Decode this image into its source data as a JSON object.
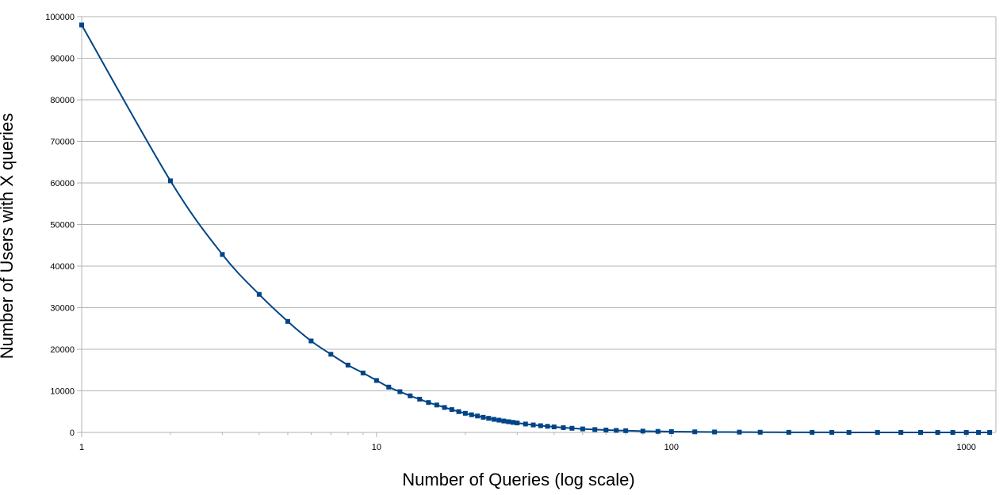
{
  "chart_data": {
    "type": "line",
    "title": "",
    "xlabel": "Number of Queries (log scale)",
    "ylabel": "Number of Users with X queries",
    "x_scale": "log",
    "xlim": [
      1,
      1260
    ],
    "ylim": [
      0,
      100000
    ],
    "x_ticks": [
      "1",
      "10",
      "100",
      "1000"
    ],
    "y_ticks": [
      "0",
      "10000",
      "20000",
      "30000",
      "40000",
      "50000",
      "60000",
      "70000",
      "80000",
      "90000",
      "100000"
    ],
    "grid": "horizontal",
    "legend": "none",
    "series": [
      {
        "color": "#004586",
        "marker": "square",
        "x": [
          1,
          2,
          3,
          4,
          5,
          6,
          7,
          8,
          9,
          10,
          11,
          12,
          13,
          14,
          15,
          16,
          17,
          18,
          19,
          20,
          21,
          22,
          23,
          24,
          25,
          26,
          27,
          28,
          29,
          30,
          32,
          34,
          36,
          38,
          40,
          43,
          46,
          50,
          55,
          60,
          65,
          70,
          80,
          90,
          100,
          120,
          140,
          170,
          200,
          250,
          300,
          350,
          400,
          500,
          600,
          700,
          800,
          900,
          1000,
          1100,
          1200
        ],
        "y": [
          98000,
          60500,
          42800,
          33200,
          26700,
          22000,
          18800,
          16200,
          14300,
          12500,
          10900,
          9800,
          8800,
          8000,
          7200,
          6600,
          6000,
          5500,
          5000,
          4600,
          4250,
          3950,
          3650,
          3400,
          3150,
          2950,
          2750,
          2580,
          2420,
          2280,
          2020,
          1800,
          1620,
          1470,
          1330,
          1150,
          1000,
          840,
          690,
          580,
          490,
          420,
          320,
          250,
          200,
          140,
          105,
          70,
          50,
          32,
          22,
          16,
          12,
          8,
          5,
          4,
          3,
          2,
          2,
          1,
          1
        ]
      }
    ]
  }
}
